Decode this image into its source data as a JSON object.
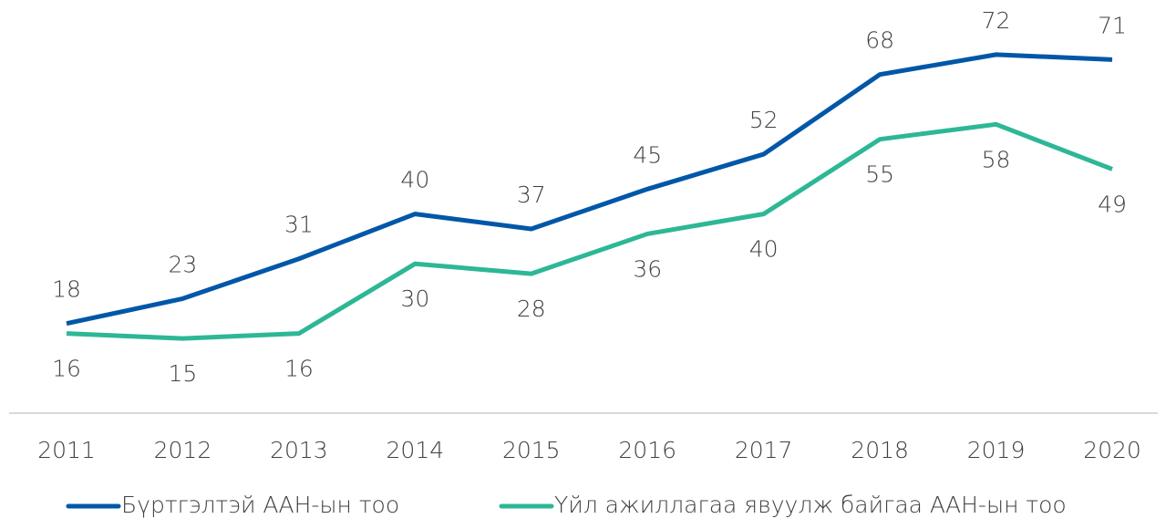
{
  "chart_data": {
    "type": "line",
    "categories": [
      "2011",
      "2012",
      "2013",
      "2014",
      "2015",
      "2016",
      "2017",
      "2018",
      "2019",
      "2020"
    ],
    "series": [
      {
        "name": "Бүртгэлтэй ААН-ын тоо",
        "color": "#0057a8",
        "values": [
          18,
          23,
          31,
          40,
          37,
          45,
          52,
          68,
          72,
          71
        ]
      },
      {
        "name": "Үйл ажиллагаа явуулж байгаа ААН-ын тоо",
        "color": "#2db795",
        "values": [
          16,
          15,
          16,
          30,
          28,
          36,
          40,
          55,
          58,
          49
        ]
      }
    ],
    "legend": "bottom"
  }
}
